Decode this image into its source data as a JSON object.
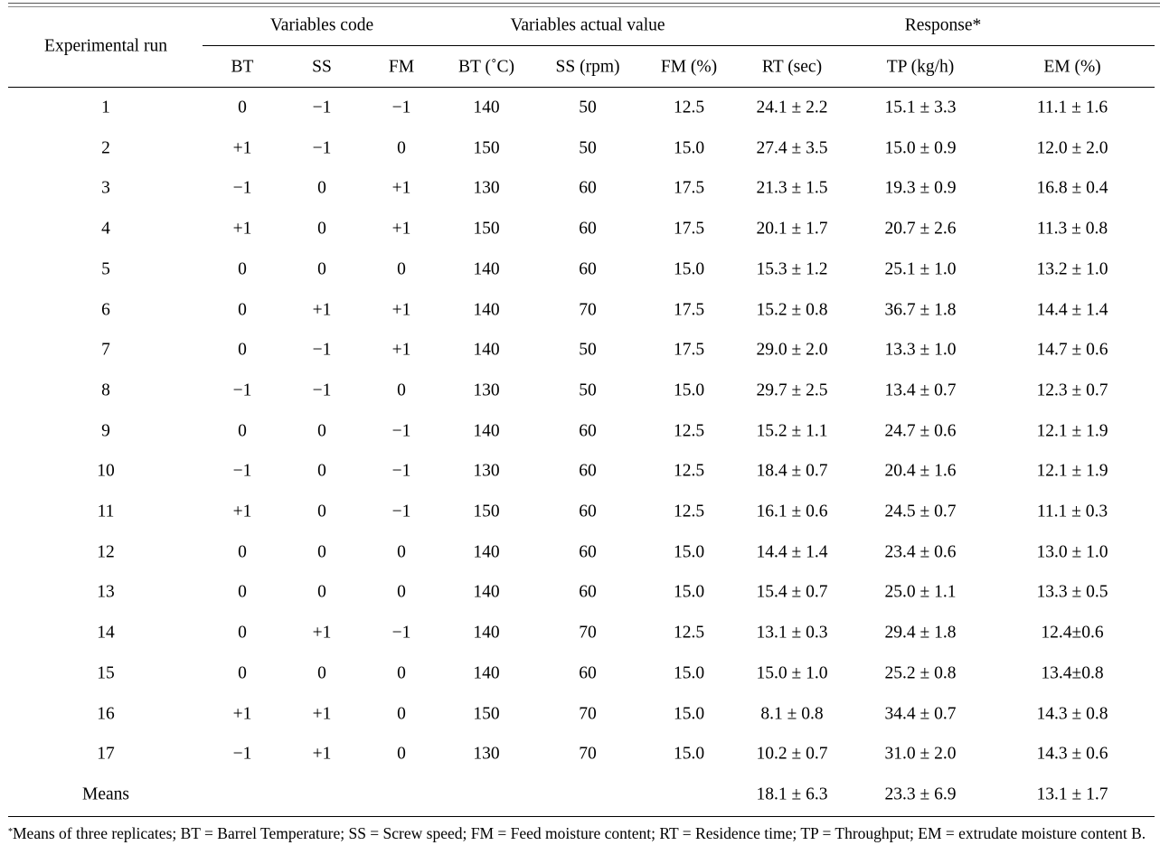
{
  "table": {
    "header_group": {
      "run": "Experimental run",
      "code": "Variables code",
      "actual": "Variables actual value",
      "response": "Response*"
    },
    "columns": [
      "BT",
      "SS",
      "FM",
      "BT (˚C)",
      "SS (rpm)",
      "FM (%)",
      "RT (sec)",
      "TP (kg/h)",
      "EM (%)"
    ],
    "rows": [
      [
        "1",
        "0",
        "−1",
        "−1",
        "140",
        "50",
        "12.5",
        "24.1 ± 2.2",
        "15.1 ± 3.3",
        "11.1 ± 1.6"
      ],
      [
        "2",
        "+1",
        "−1",
        "0",
        "150",
        "50",
        "15.0",
        "27.4 ± 3.5",
        "15.0 ± 0.9",
        "12.0 ± 2.0"
      ],
      [
        "3",
        "−1",
        "0",
        "+1",
        "130",
        "60",
        "17.5",
        "21.3 ± 1.5",
        "19.3 ± 0.9",
        "16.8 ± 0.4"
      ],
      [
        "4",
        "+1",
        "0",
        "+1",
        "150",
        "60",
        "17.5",
        "20.1 ± 1.7",
        "20.7 ± 2.6",
        "11.3 ± 0.8"
      ],
      [
        "5",
        "0",
        "0",
        "0",
        "140",
        "60",
        "15.0",
        "15.3 ± 1.2",
        "25.1 ± 1.0",
        "13.2 ± 1.0"
      ],
      [
        "6",
        "0",
        "+1",
        "+1",
        "140",
        "70",
        "17.5",
        "15.2 ± 0.8",
        "36.7 ± 1.8",
        "14.4 ± 1.4"
      ],
      [
        "7",
        "0",
        "−1",
        "+1",
        "140",
        "50",
        "17.5",
        "29.0 ± 2.0",
        "13.3 ± 1.0",
        "14.7 ± 0.6"
      ],
      [
        "8",
        "−1",
        "−1",
        "0",
        "130",
        "50",
        "15.0",
        "29.7 ± 2.5",
        "13.4 ± 0.7",
        "12.3 ± 0.7"
      ],
      [
        "9",
        "0",
        "0",
        "−1",
        "140",
        "60",
        "12.5",
        "15.2 ± 1.1",
        "24.7 ± 0.6",
        "12.1 ± 1.9"
      ],
      [
        "10",
        "−1",
        "0",
        "−1",
        "130",
        "60",
        "12.5",
        "18.4 ± 0.7",
        "20.4 ± 1.6",
        "12.1 ± 1.9"
      ],
      [
        "11",
        "+1",
        "0",
        "−1",
        "150",
        "60",
        "12.5",
        "16.1 ± 0.6",
        "24.5 ± 0.7",
        "11.1 ± 0.3"
      ],
      [
        "12",
        "0",
        "0",
        "0",
        "140",
        "60",
        "15.0",
        "14.4 ± 1.4",
        "23.4 ± 0.6",
        "13.0 ± 1.0"
      ],
      [
        "13",
        "0",
        "0",
        "0",
        "140",
        "60",
        "15.0",
        "15.4 ± 0.7",
        "25.0 ± 1.1",
        "13.3 ± 0.5"
      ],
      [
        "14",
        "0",
        "+1",
        "−1",
        "140",
        "70",
        "12.5",
        "13.1 ± 0.3",
        "29.4 ± 1.8",
        "12.4±0.6"
      ],
      [
        "15",
        "0",
        "0",
        "0",
        "140",
        "60",
        "15.0",
        "15.0 ± 1.0",
        "25.2 ± 0.8",
        "13.4±0.8"
      ],
      [
        "16",
        "+1",
        "+1",
        "0",
        "150",
        "70",
        "15.0",
        "8.1 ± 0.8",
        "34.4 ± 0.7",
        "14.3 ± 0.8"
      ],
      [
        "17",
        "−1",
        "+1",
        "0",
        "130",
        "70",
        "15.0",
        "10.2 ± 0.7",
        "31.0 ± 2.0",
        "14.3 ± 0.6"
      ]
    ],
    "means": {
      "label": "Means",
      "rt": "18.1 ± 6.3",
      "tp": "23.3 ± 6.9",
      "em": "13.1 ± 1.7"
    }
  },
  "footnote": {
    "marker": "*",
    "text": "Means of three replicates; BT = Barrel Temperature; SS = Screw speed; FM = Feed moisture content; RT = Residence time; TP = Throughput; EM = extrudate moisture content B."
  }
}
